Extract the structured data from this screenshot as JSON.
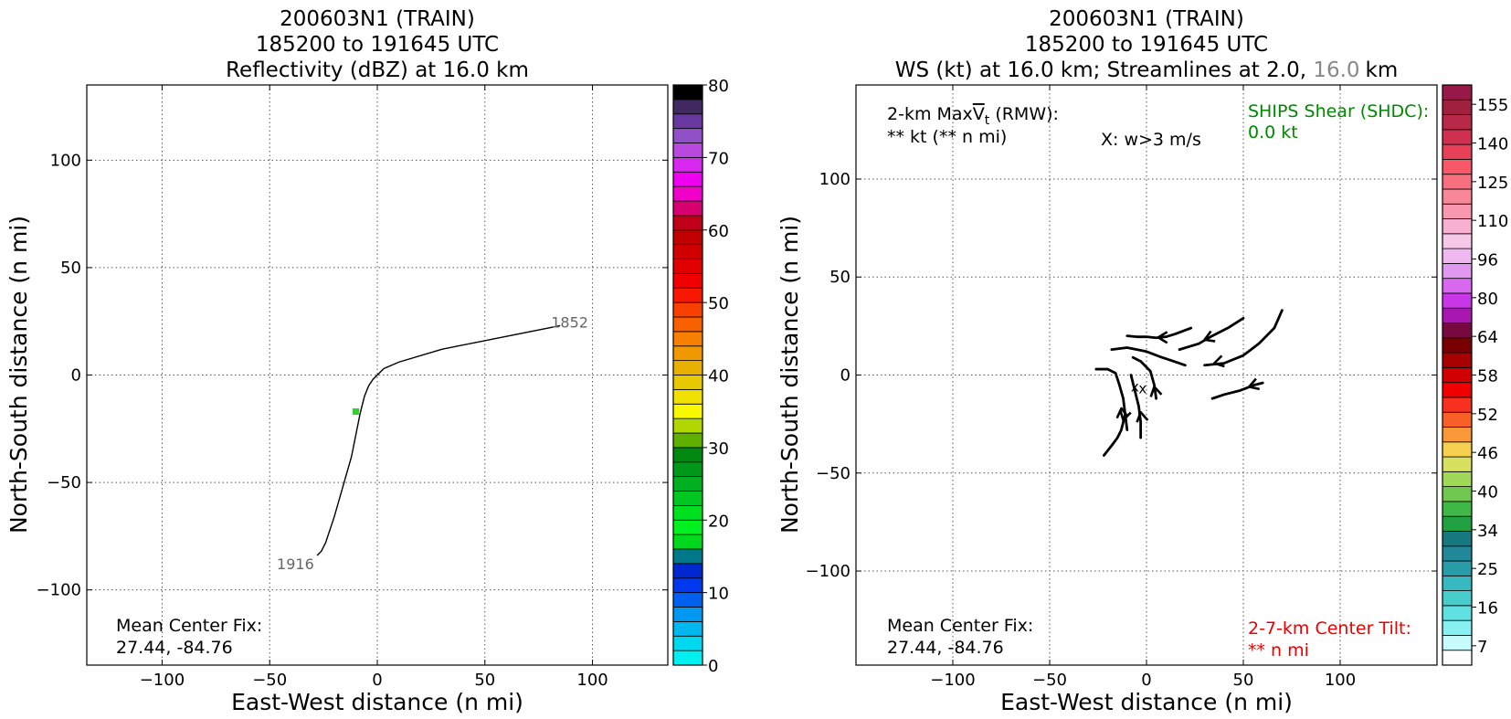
{
  "chart_data": [
    {
      "type": "line",
      "title_lines": [
        "200603N1 (TRAIN)",
        "185200 to 191645 UTC",
        "Reflectivity (dBZ) at 16.0 km"
      ],
      "xlabel": "East-West distance (n mi)",
      "ylabel": "North-South distance (n mi)",
      "xlim": [
        -135,
        135
      ],
      "ylim": [
        -135,
        135
      ],
      "xticks": [
        -100,
        -50,
        0,
        50,
        100
      ],
      "yticks": [
        -100,
        -50,
        0,
        50,
        100
      ],
      "xtick_labels": [
        "−100",
        "−50",
        "0",
        "50",
        "100"
      ],
      "ytick_labels": [
        "−100",
        "−50",
        "0",
        "50",
        "100"
      ],
      "grid": true,
      "track": {
        "x": [
          85,
          60,
          30,
          10,
          3,
          0,
          -2,
          -4,
          -6,
          -8,
          -10,
          -12,
          -16,
          -20,
          -24,
          -26,
          -28
        ],
        "y": [
          23,
          18,
          12,
          6,
          3,
          0,
          -2,
          -5,
          -10,
          -18,
          -28,
          -38,
          -52,
          -66,
          -78,
          -82,
          -84
        ],
        "start_label": "1852",
        "end_label": "1916"
      },
      "center_marker": {
        "x": -10,
        "y": -17,
        "color": "#33cc33"
      },
      "annotation": {
        "line1": "Mean Center Fix:",
        "line2": "27.44, -84.76"
      },
      "colorbar": {
        "ticks": [
          "0",
          "10",
          "20",
          "30",
          "40",
          "50",
          "60",
          "70",
          "80"
        ],
        "tick_values": [
          0,
          10,
          20,
          30,
          40,
          50,
          60,
          70,
          80
        ],
        "min": 0,
        "max": 80,
        "colors": [
          "#00f0f0",
          "#00d8f0",
          "#00b8f0",
          "#0098f0",
          "#0060f0",
          "#0038f0",
          "#0028d0",
          "#00788c",
          "#00d820",
          "#00f020",
          "#00e020",
          "#00c820",
          "#00b020",
          "#009818",
          "#008810",
          "#60b000",
          "#b0d800",
          "#f8f800",
          "#f0e000",
          "#e8c800",
          "#e8b000",
          "#f09800",
          "#f88000",
          "#f86000",
          "#f84000",
          "#f81800",
          "#f00000",
          "#e00000",
          "#d00000",
          "#c00000",
          "#c00018",
          "#d80070",
          "#f000c8",
          "#f000f0",
          "#d828f0",
          "#b848e0",
          "#9050c8",
          "#6838a0",
          "#402860",
          "#000000"
        ]
      }
    },
    {
      "type": "streamline",
      "title_lines": [
        "200603N1 (TRAIN)",
        "185200 to 191645 UTC"
      ],
      "title_line3": {
        "prefix": "WS (kt) at 16.0 km; Streamlines at 2.0, ",
        "gray": "16.0",
        "suffix": "km"
      },
      "xlabel": "East-West distance (n mi)",
      "ylabel": "North-South distance (n mi)",
      "xlim": [
        -150,
        150
      ],
      "ylim": [
        -148,
        148
      ],
      "xticks": [
        -100,
        -50,
        0,
        50,
        100
      ],
      "yticks": [
        -100,
        -50,
        0,
        50,
        100
      ],
      "xtick_labels": [
        "−100",
        "−50",
        "0",
        "50",
        "100"
      ],
      "ytick_labels": [
        "−100",
        "−50",
        "0",
        "50",
        "100"
      ],
      "grid": true,
      "annotations": {
        "maxvt_line1_pre": "2-km Max",
        "maxvt_v": "V",
        "maxvt_sub": "t",
        "maxvt_line1_post": " (RMW):",
        "maxvt_line2": "** kt (** n mi)",
        "w_label": "X: w>3 m/s",
        "shear_line1": "SHIPS Shear (SHDC):",
        "shear_line2": "0.0 kt",
        "shear_color": "#008800",
        "center_fix_line1": "Mean Center Fix:",
        "center_fix_line2": "27.44, -84.76",
        "tilt_line1": "2-7-km Center Tilt:",
        "tilt_line2": "** n mi",
        "tilt_color": "#ee0000"
      },
      "center_marks": {
        "x": [
          -6,
          -2
        ],
        "y": [
          -6,
          -7
        ],
        "symbol": "x"
      },
      "streamlines": [
        {
          "x": [
            -10,
            -5,
            0,
            5,
            10,
            15,
            23
          ],
          "y": [
            20,
            19.5,
            19.5,
            19,
            19.5,
            21,
            24
          ],
          "arrow": [
            6,
            19.2
          ]
        },
        {
          "x": [
            -18,
            -10,
            0,
            8,
            14,
            20
          ],
          "y": [
            13,
            14,
            12,
            9,
            7,
            5
          ],
          "arrow": null
        },
        {
          "x": [
            17,
            27,
            34,
            42,
            50
          ],
          "y": [
            13,
            16,
            20,
            24,
            29
          ],
          "arrow": [
            30,
            18
          ]
        },
        {
          "x": [
            30,
            40,
            50,
            58,
            66,
            70
          ],
          "y": [
            5,
            6,
            10,
            16,
            24,
            33
          ],
          "arrow": [
            35,
            6
          ]
        },
        {
          "x": [
            34,
            40,
            48,
            56,
            60
          ],
          "y": [
            -12,
            -10,
            -8,
            -5,
            -4
          ],
          "arrow": [
            53,
            -6
          ]
        },
        {
          "x": [
            -26,
            -20,
            -16,
            -14,
            -12,
            -11,
            -10
          ],
          "y": [
            3,
            3,
            1,
            -5,
            -12,
            -20,
            -28
          ],
          "arrow": [
            -13,
            -17
          ]
        },
        {
          "x": [
            -22,
            -18,
            -15,
            -13,
            -11
          ],
          "y": [
            -41,
            -36,
            -32,
            -28,
            -20
          ],
          "arrow": [
            -12,
            -23
          ]
        },
        {
          "x": [
            -8,
            -6,
            -4,
            -3,
            -3
          ],
          "y": [
            0,
            -8,
            -16,
            -24,
            -32
          ],
          "arrow": [
            -3,
            -19
          ]
        },
        {
          "x": [
            -7,
            -3,
            2,
            4,
            5
          ],
          "y": [
            9,
            7,
            2,
            -5,
            -12
          ],
          "arrow": [
            4,
            -6
          ]
        }
      ],
      "colorbar": {
        "ticks": [
          "7",
          "16",
          "25",
          "34",
          "40",
          "46",
          "52",
          "58",
          "64",
          "80",
          "96",
          "110",
          "125",
          "140",
          "155"
        ],
        "tick_values": [
          7,
          16,
          25,
          34,
          40,
          46,
          52,
          58,
          64,
          80,
          96,
          110,
          125,
          140,
          155
        ],
        "nbins": 30,
        "colors": [
          "#ffffff",
          "#c8fcfc",
          "#88f0f0",
          "#60e0e0",
          "#48cccc",
          "#38b8c0",
          "#289ca8",
          "#208898",
          "#187880",
          "#20a040",
          "#40b848",
          "#70c850",
          "#a0d858",
          "#d8e060",
          "#f8d050",
          "#f89838",
          "#f86028",
          "#f83020",
          "#f00000",
          "#d00000",
          "#a80000",
          "#780000",
          "#780840",
          "#a818b0",
          "#c838e8",
          "#d868f0",
          "#e098f0",
          "#f0b8f0",
          "#f8c8e8",
          "#f8b0d0",
          "#f898b0",
          "#f88898",
          "#f87080",
          "#f85868",
          "#e84058",
          "#d03050",
          "#b82848",
          "#a02040",
          "#981848"
        ]
      }
    }
  ]
}
